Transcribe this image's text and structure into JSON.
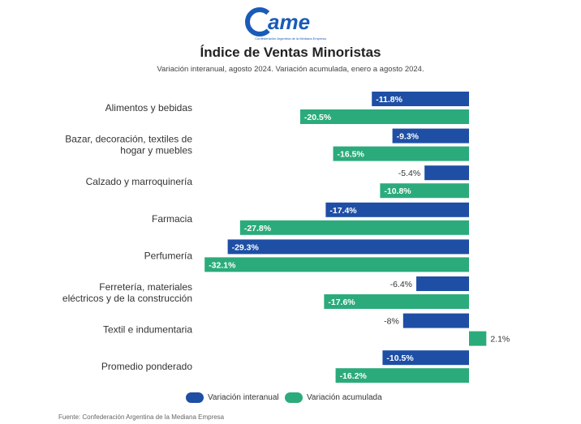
{
  "logo": {
    "wordmark": "ame",
    "tagline": "Confederación Argentina de la Mediana Empresa",
    "color": "#1a5bb8"
  },
  "title": "Índice de Ventas Minoristas",
  "subtitle": "Variación interanual, agosto 2024. Variación acumulada, enero a agosto 2024.",
  "source": "Fuente: Confederación Argentina de la Mediana Empresa",
  "colors": {
    "interanual": "#1e4fa5",
    "acumulada": "#2bab7b"
  },
  "chart_data": {
    "type": "bar",
    "orientation": "horizontal",
    "categories": [
      [
        "Alimentos y bebidas"
      ],
      [
        "Bazar, decoración, textiles de",
        "hogar y muebles"
      ],
      [
        "Calzado y marroquinería"
      ],
      [
        "Farmacia"
      ],
      [
        "Perfumería"
      ],
      [
        "Ferretería, materiales",
        "eléctricos y de la construcción"
      ],
      [
        "Textil e indumentaria"
      ],
      [
        "Promedio ponderado"
      ]
    ],
    "series": [
      {
        "name": "Variación interanual",
        "values": [
          -11.8,
          -9.3,
          -5.4,
          -17.4,
          -29.3,
          -6.4,
          -8,
          -10.5
        ],
        "labels": [
          "-11.8%",
          "-9.3%",
          "-5.4%",
          "-17.4%",
          "-29.3%",
          "-6.4%",
          "-8%",
          "-10.5%"
        ]
      },
      {
        "name": "Variación acumulada",
        "values": [
          -20.5,
          -16.5,
          -10.8,
          -27.8,
          -32.1,
          -17.6,
          2.1,
          -16.2
        ],
        "labels": [
          "-20.5%",
          "-16.5%",
          "-10.8%",
          "-27.8%",
          "-32.1%",
          "-17.6%",
          "2.1%",
          "-16.2%"
        ]
      }
    ],
    "legend_position": "bottom-center"
  }
}
